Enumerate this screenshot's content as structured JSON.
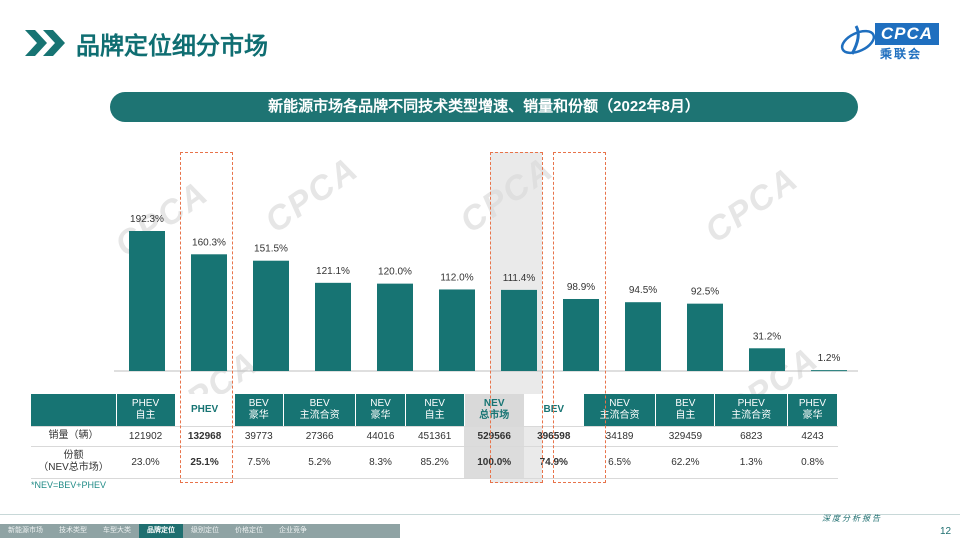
{
  "header": {
    "title": "品牌定位细分市场",
    "logo_text": "CPCA",
    "logo_cn": "乘联会"
  },
  "subtitle": "新能源市场各品牌不同技术类型增速、销量和份额（2022年8月）",
  "chart_data": {
    "type": "bar",
    "title": "新能源市场各品牌不同技术类型增速、销量和份额（2022年8月）",
    "categories": [
      [
        "PHEV",
        "自主"
      ],
      [
        "PHEV"
      ],
      [
        "BEV",
        "豪华"
      ],
      [
        "BEV",
        "主流合资"
      ],
      [
        "NEV",
        "豪华"
      ],
      [
        "NEV",
        "自主"
      ],
      [
        "NEV",
        "总市场"
      ],
      [
        "BEV"
      ],
      [
        "NEV",
        "主流合资"
      ],
      [
        "BEV",
        "自主"
      ],
      [
        "PHEV",
        "主流合资"
      ],
      [
        "PHEV",
        "豪华"
      ]
    ],
    "values": [
      192.3,
      160.3,
      151.5,
      121.1,
      120.0,
      112.0,
      111.4,
      98.9,
      94.5,
      92.5,
      31.2,
      1.2
    ],
    "value_labels": [
      "192.3%",
      "160.3%",
      "151.5%",
      "121.1%",
      "120.0%",
      "112.0%",
      "111.4%",
      "98.9%",
      "94.5%",
      "92.5%",
      "31.2%",
      "1.2%"
    ],
    "unit": "%",
    "ylim": [
      0,
      200
    ],
    "color": "#177473",
    "highlighted": [
      1,
      6,
      7
    ]
  },
  "table": {
    "rows": [
      {
        "label": "销量（辆）",
        "values": [
          "121902",
          "132968",
          "39773",
          "27366",
          "44016",
          "451361",
          "529566",
          "396598",
          "34189",
          "329459",
          "6823",
          "4243"
        ]
      },
      {
        "label": "份额\n（NEV总市场）",
        "values": [
          "23.0%",
          "25.1%",
          "7.5%",
          "5.2%",
          "8.3%",
          "85.2%",
          "100.0%",
          "74.9%",
          "6.5%",
          "62.2%",
          "1.3%",
          "0.8%"
        ]
      }
    ]
  },
  "footnote": "*NEV=BEV+PHEV",
  "watermark": "CPCA",
  "footer": {
    "nav": [
      "新能源市场",
      "技术类型",
      "车型大类",
      "品牌定位",
      "级别定位",
      "价格定位",
      "企业竞争"
    ],
    "active_index": 3,
    "slogan": "深度分析报告",
    "page": "12"
  },
  "colors": {
    "teal": "#177473",
    "title_teal": "#0f6e72",
    "dash_orange": "#e8734a"
  }
}
